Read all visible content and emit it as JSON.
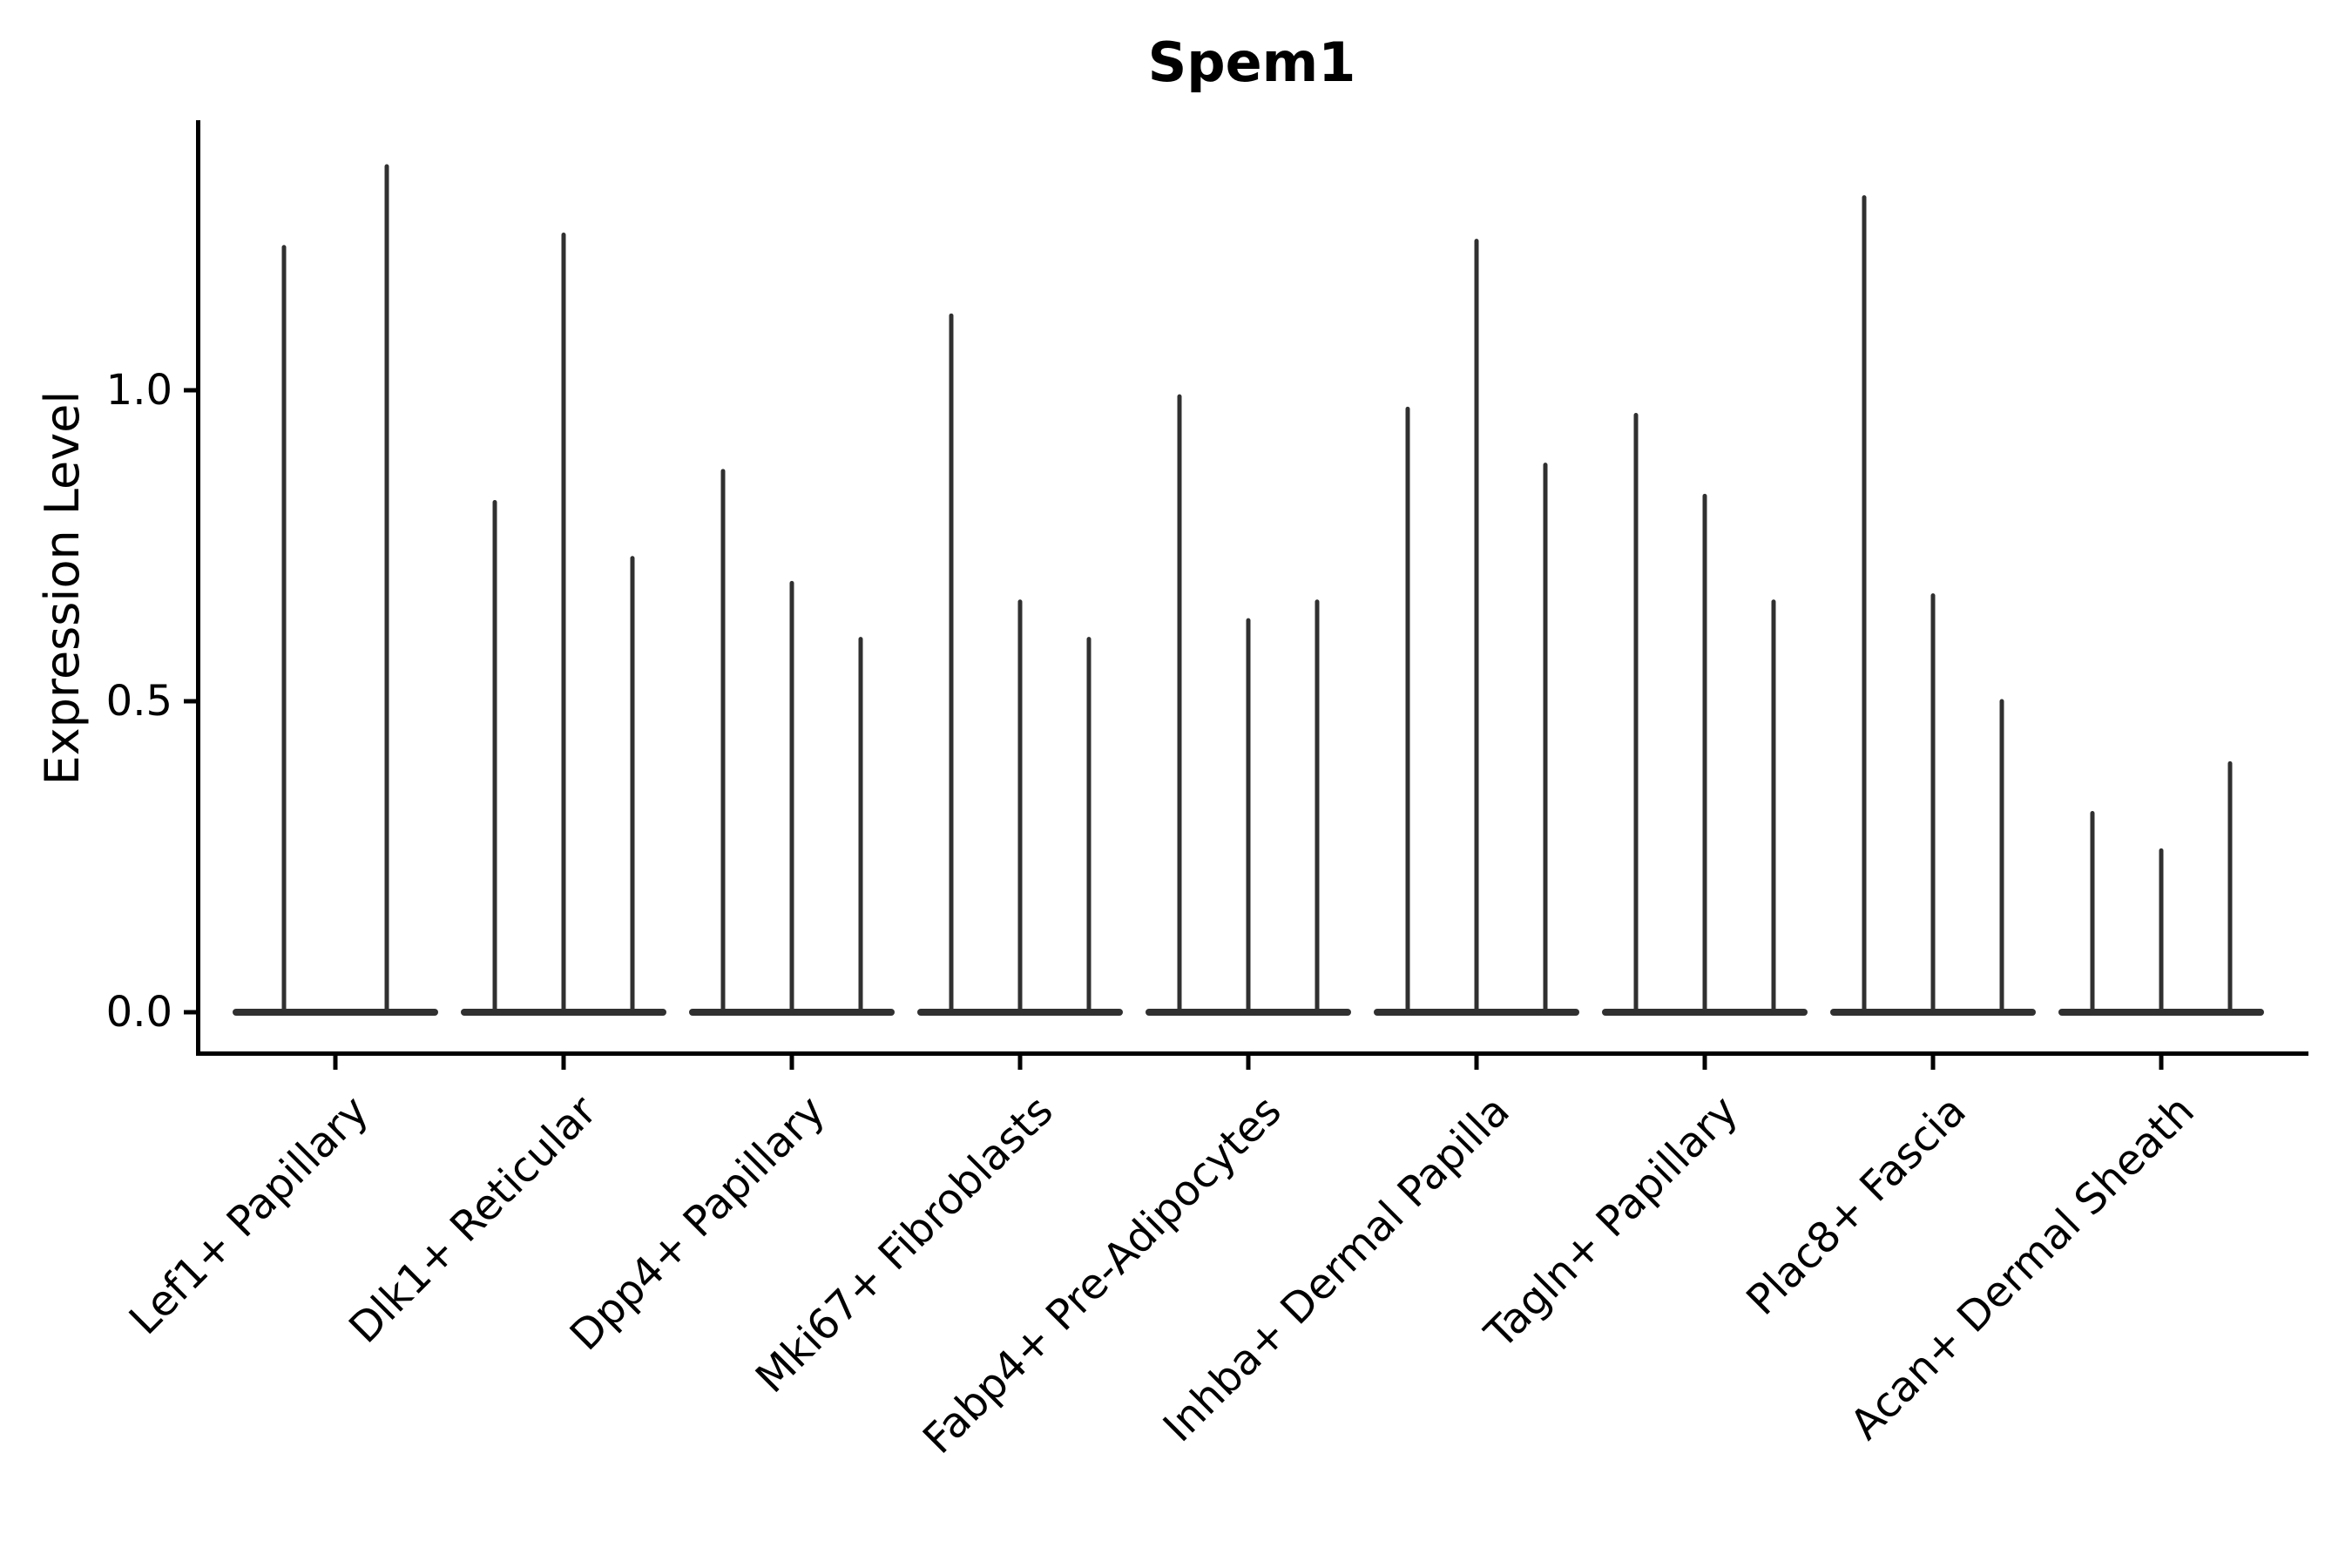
{
  "chart_data": {
    "type": "violin",
    "title": "Spem1",
    "xlabel": "",
    "ylabel": "Expression Level",
    "ylim": [
      -0.07,
      1.43
    ],
    "grid": false,
    "legend": "none",
    "violin_color": "#303030",
    "axis_color": "#000000",
    "yticks": [
      {
        "value": 0.0,
        "label": "0.0"
      },
      {
        "value": 0.5,
        "label": "0.5"
      },
      {
        "value": 1.0,
        "label": "1.0"
      }
    ],
    "x_tick_rotation_deg": 45,
    "categories": [
      {
        "label": "Lef1+ Papillary",
        "peaks": [
          1.23,
          1.36
        ]
      },
      {
        "label": "Dlk1+ Reticular",
        "peaks": [
          0.82,
          1.25,
          0.73
        ]
      },
      {
        "label": "Dpp4+ Papillary",
        "peaks": [
          0.87,
          0.69,
          0.6
        ]
      },
      {
        "label": "Mki67+ Fibroblasts",
        "peaks": [
          1.12,
          0.66,
          0.6
        ]
      },
      {
        "label": "Fabp4+ Pre-Adipocytes",
        "peaks": [
          0.99,
          0.63,
          0.66
        ]
      },
      {
        "label": "Inhba+ Dermal Papilla",
        "peaks": [
          0.97,
          1.24,
          0.88
        ]
      },
      {
        "label": "Tagln+ Papillary",
        "peaks": [
          0.96,
          0.83,
          0.66
        ]
      },
      {
        "label": "Plac8+ Fascia",
        "peaks": [
          1.31,
          0.67,
          0.5
        ]
      },
      {
        "label": "Acan+ Dermal Sheath",
        "peaks": [
          0.32,
          0.26,
          0.4
        ]
      }
    ],
    "note": "Needle-shaped violins: dense flat mass at expression 0 with a thin spike reaching each peak value"
  }
}
